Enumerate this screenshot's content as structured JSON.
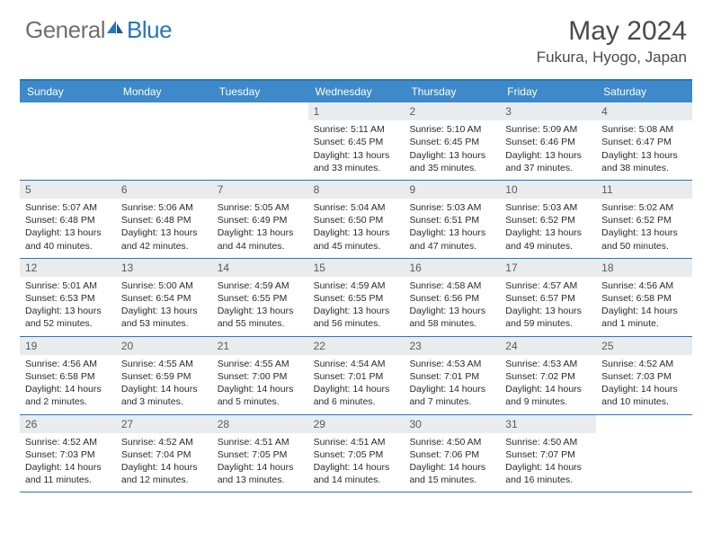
{
  "brand": {
    "part1": "General",
    "part2": "Blue"
  },
  "title": "May 2024",
  "location": "Fukura, Hyogo, Japan",
  "colors": {
    "header_bg": "#3d89c9",
    "border": "#2876bb",
    "daynum_bg": "#e9ecef",
    "text": "#2a2a2a",
    "brand_gray": "#6f6f6f",
    "brand_blue": "#2876bb"
  },
  "weekdays": [
    "Sunday",
    "Monday",
    "Tuesday",
    "Wednesday",
    "Thursday",
    "Friday",
    "Saturday"
  ],
  "weeks": [
    [
      {
        "empty": true
      },
      {
        "empty": true
      },
      {
        "empty": true
      },
      {
        "num": "1",
        "sunrise": "Sunrise: 5:11 AM",
        "sunset": "Sunset: 6:45 PM",
        "daylight1": "Daylight: 13 hours",
        "daylight2": "and 33 minutes."
      },
      {
        "num": "2",
        "sunrise": "Sunrise: 5:10 AM",
        "sunset": "Sunset: 6:45 PM",
        "daylight1": "Daylight: 13 hours",
        "daylight2": "and 35 minutes."
      },
      {
        "num": "3",
        "sunrise": "Sunrise: 5:09 AM",
        "sunset": "Sunset: 6:46 PM",
        "daylight1": "Daylight: 13 hours",
        "daylight2": "and 37 minutes."
      },
      {
        "num": "4",
        "sunrise": "Sunrise: 5:08 AM",
        "sunset": "Sunset: 6:47 PM",
        "daylight1": "Daylight: 13 hours",
        "daylight2": "and 38 minutes."
      }
    ],
    [
      {
        "num": "5",
        "sunrise": "Sunrise: 5:07 AM",
        "sunset": "Sunset: 6:48 PM",
        "daylight1": "Daylight: 13 hours",
        "daylight2": "and 40 minutes."
      },
      {
        "num": "6",
        "sunrise": "Sunrise: 5:06 AM",
        "sunset": "Sunset: 6:48 PM",
        "daylight1": "Daylight: 13 hours",
        "daylight2": "and 42 minutes."
      },
      {
        "num": "7",
        "sunrise": "Sunrise: 5:05 AM",
        "sunset": "Sunset: 6:49 PM",
        "daylight1": "Daylight: 13 hours",
        "daylight2": "and 44 minutes."
      },
      {
        "num": "8",
        "sunrise": "Sunrise: 5:04 AM",
        "sunset": "Sunset: 6:50 PM",
        "daylight1": "Daylight: 13 hours",
        "daylight2": "and 45 minutes."
      },
      {
        "num": "9",
        "sunrise": "Sunrise: 5:03 AM",
        "sunset": "Sunset: 6:51 PM",
        "daylight1": "Daylight: 13 hours",
        "daylight2": "and 47 minutes."
      },
      {
        "num": "10",
        "sunrise": "Sunrise: 5:03 AM",
        "sunset": "Sunset: 6:52 PM",
        "daylight1": "Daylight: 13 hours",
        "daylight2": "and 49 minutes."
      },
      {
        "num": "11",
        "sunrise": "Sunrise: 5:02 AM",
        "sunset": "Sunset: 6:52 PM",
        "daylight1": "Daylight: 13 hours",
        "daylight2": "and 50 minutes."
      }
    ],
    [
      {
        "num": "12",
        "sunrise": "Sunrise: 5:01 AM",
        "sunset": "Sunset: 6:53 PM",
        "daylight1": "Daylight: 13 hours",
        "daylight2": "and 52 minutes."
      },
      {
        "num": "13",
        "sunrise": "Sunrise: 5:00 AM",
        "sunset": "Sunset: 6:54 PM",
        "daylight1": "Daylight: 13 hours",
        "daylight2": "and 53 minutes."
      },
      {
        "num": "14",
        "sunrise": "Sunrise: 4:59 AM",
        "sunset": "Sunset: 6:55 PM",
        "daylight1": "Daylight: 13 hours",
        "daylight2": "and 55 minutes."
      },
      {
        "num": "15",
        "sunrise": "Sunrise: 4:59 AM",
        "sunset": "Sunset: 6:55 PM",
        "daylight1": "Daylight: 13 hours",
        "daylight2": "and 56 minutes."
      },
      {
        "num": "16",
        "sunrise": "Sunrise: 4:58 AM",
        "sunset": "Sunset: 6:56 PM",
        "daylight1": "Daylight: 13 hours",
        "daylight2": "and 58 minutes."
      },
      {
        "num": "17",
        "sunrise": "Sunrise: 4:57 AM",
        "sunset": "Sunset: 6:57 PM",
        "daylight1": "Daylight: 13 hours",
        "daylight2": "and 59 minutes."
      },
      {
        "num": "18",
        "sunrise": "Sunrise: 4:56 AM",
        "sunset": "Sunset: 6:58 PM",
        "daylight1": "Daylight: 14 hours",
        "daylight2": "and 1 minute."
      }
    ],
    [
      {
        "num": "19",
        "sunrise": "Sunrise: 4:56 AM",
        "sunset": "Sunset: 6:58 PM",
        "daylight1": "Daylight: 14 hours",
        "daylight2": "and 2 minutes."
      },
      {
        "num": "20",
        "sunrise": "Sunrise: 4:55 AM",
        "sunset": "Sunset: 6:59 PM",
        "daylight1": "Daylight: 14 hours",
        "daylight2": "and 3 minutes."
      },
      {
        "num": "21",
        "sunrise": "Sunrise: 4:55 AM",
        "sunset": "Sunset: 7:00 PM",
        "daylight1": "Daylight: 14 hours",
        "daylight2": "and 5 minutes."
      },
      {
        "num": "22",
        "sunrise": "Sunrise: 4:54 AM",
        "sunset": "Sunset: 7:01 PM",
        "daylight1": "Daylight: 14 hours",
        "daylight2": "and 6 minutes."
      },
      {
        "num": "23",
        "sunrise": "Sunrise: 4:53 AM",
        "sunset": "Sunset: 7:01 PM",
        "daylight1": "Daylight: 14 hours",
        "daylight2": "and 7 minutes."
      },
      {
        "num": "24",
        "sunrise": "Sunrise: 4:53 AM",
        "sunset": "Sunset: 7:02 PM",
        "daylight1": "Daylight: 14 hours",
        "daylight2": "and 9 minutes."
      },
      {
        "num": "25",
        "sunrise": "Sunrise: 4:52 AM",
        "sunset": "Sunset: 7:03 PM",
        "daylight1": "Daylight: 14 hours",
        "daylight2": "and 10 minutes."
      }
    ],
    [
      {
        "num": "26",
        "sunrise": "Sunrise: 4:52 AM",
        "sunset": "Sunset: 7:03 PM",
        "daylight1": "Daylight: 14 hours",
        "daylight2": "and 11 minutes."
      },
      {
        "num": "27",
        "sunrise": "Sunrise: 4:52 AM",
        "sunset": "Sunset: 7:04 PM",
        "daylight1": "Daylight: 14 hours",
        "daylight2": "and 12 minutes."
      },
      {
        "num": "28",
        "sunrise": "Sunrise: 4:51 AM",
        "sunset": "Sunset: 7:05 PM",
        "daylight1": "Daylight: 14 hours",
        "daylight2": "and 13 minutes."
      },
      {
        "num": "29",
        "sunrise": "Sunrise: 4:51 AM",
        "sunset": "Sunset: 7:05 PM",
        "daylight1": "Daylight: 14 hours",
        "daylight2": "and 14 minutes."
      },
      {
        "num": "30",
        "sunrise": "Sunrise: 4:50 AM",
        "sunset": "Sunset: 7:06 PM",
        "daylight1": "Daylight: 14 hours",
        "daylight2": "and 15 minutes."
      },
      {
        "num": "31",
        "sunrise": "Sunrise: 4:50 AM",
        "sunset": "Sunset: 7:07 PM",
        "daylight1": "Daylight: 14 hours",
        "daylight2": "and 16 minutes."
      },
      {
        "empty": true
      }
    ]
  ]
}
